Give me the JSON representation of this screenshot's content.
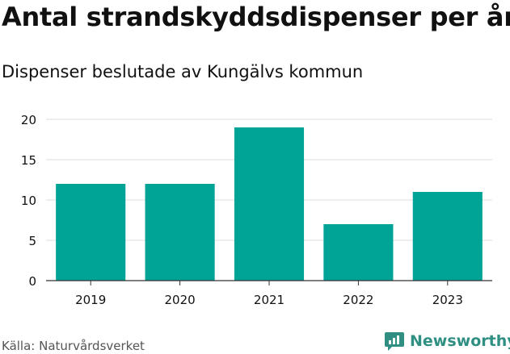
{
  "title": "Antal strandskyddsdispenser per år",
  "subtitle": "Dispenser beslutade av Kungälvs kommun",
  "source": "Källa: Naturvårdsverket",
  "brand": {
    "name": "Newsworthy",
    "icon": "newsworthy-logo-icon"
  },
  "colors": {
    "bar": "#00a497",
    "grid": "#dedede",
    "axis": "#333333",
    "brand": "#2f8f83",
    "text": "#111111",
    "source": "#555555"
  },
  "chart_data": {
    "type": "bar",
    "categories": [
      "2019",
      "2020",
      "2021",
      "2022",
      "2023"
    ],
    "values": [
      12,
      12,
      19,
      7,
      11
    ],
    "title": "Antal strandskyddsdispenser per år",
    "subtitle": "Dispenser beslutade av Kungälvs kommun",
    "xlabel": "",
    "ylabel": "",
    "ylim": [
      0,
      20
    ],
    "yticks": [
      0,
      5,
      10,
      15,
      20
    ],
    "grid": true,
    "legend": "none"
  }
}
